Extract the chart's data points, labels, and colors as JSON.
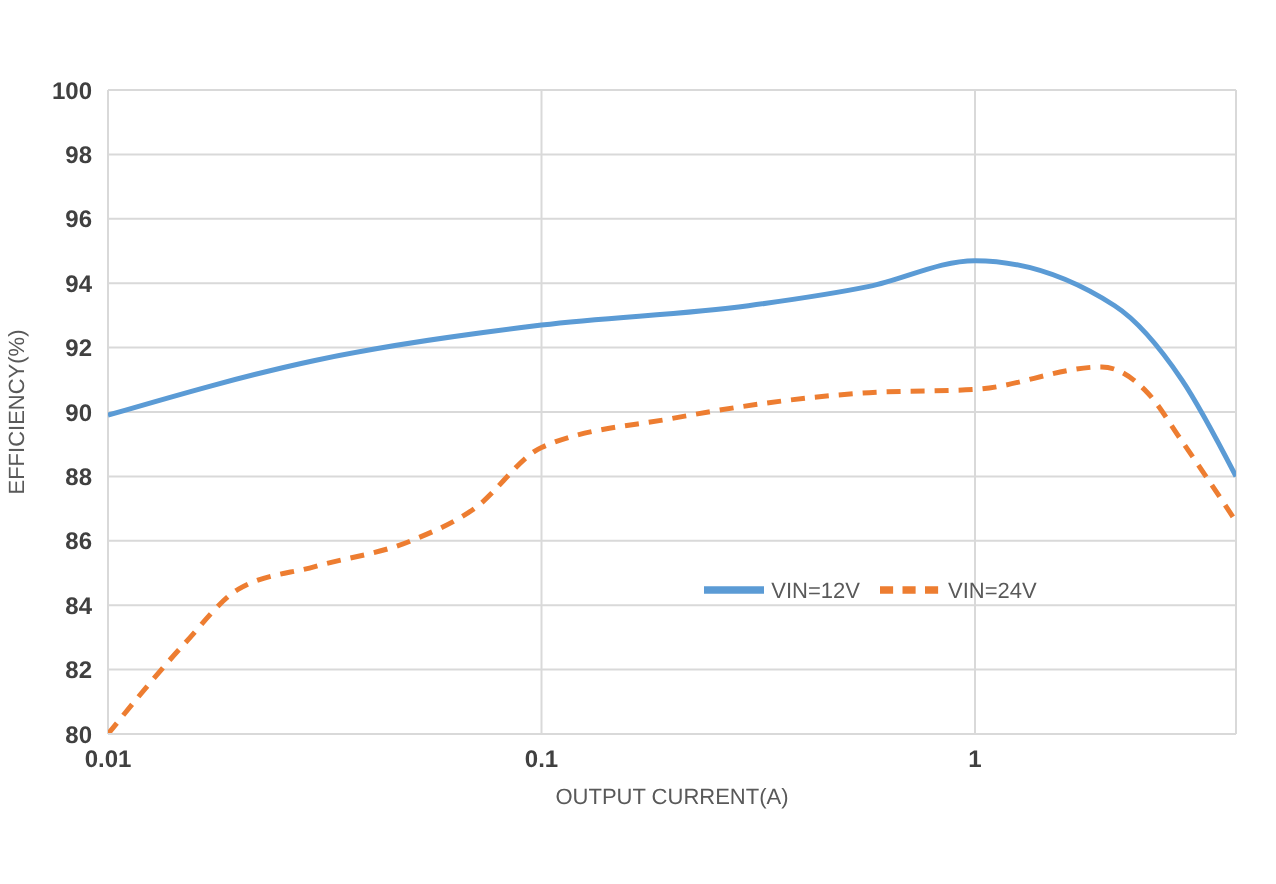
{
  "chart_data": {
    "type": "line",
    "xlabel": "OUTPUT CURRENT(A)",
    "ylabel": "EFFICIENCY(%)",
    "log": "x",
    "xlim": [
      0.01,
      4
    ],
    "xticks": [
      0.01,
      0.1,
      1
    ],
    "ylim": [
      80,
      100
    ],
    "yticks": [
      80,
      82,
      84,
      86,
      88,
      90,
      92,
      94,
      96,
      98,
      100
    ],
    "grid": true,
    "legend": "right",
    "marker": "none",
    "series": [
      {
        "name": "VIN=12V",
        "color": "#5b9bd5",
        "line_style": "solid",
        "x": [
          0.01,
          0.03,
          0.1,
          0.3,
          0.57,
          1,
          2.1,
          3,
          4
        ],
        "values": [
          89.9,
          91.6,
          92.7,
          93.3,
          93.9,
          94.7,
          93.3,
          91.0,
          88.0
        ]
      },
      {
        "name": "VIN=24V",
        "color": "#ed7d31",
        "line_style": "dashed",
        "x": [
          0.01,
          0.015,
          0.02,
          0.03,
          0.05,
          0.07,
          0.1,
          0.2,
          0.57,
          1,
          1.96,
          2.5,
          3,
          4
        ],
        "values": [
          80,
          82.8,
          84.5,
          85.2,
          86.0,
          87.0,
          88.9,
          89.8,
          90.6,
          90.7,
          91.4,
          90.6,
          89.1,
          86.6
        ]
      }
    ]
  }
}
